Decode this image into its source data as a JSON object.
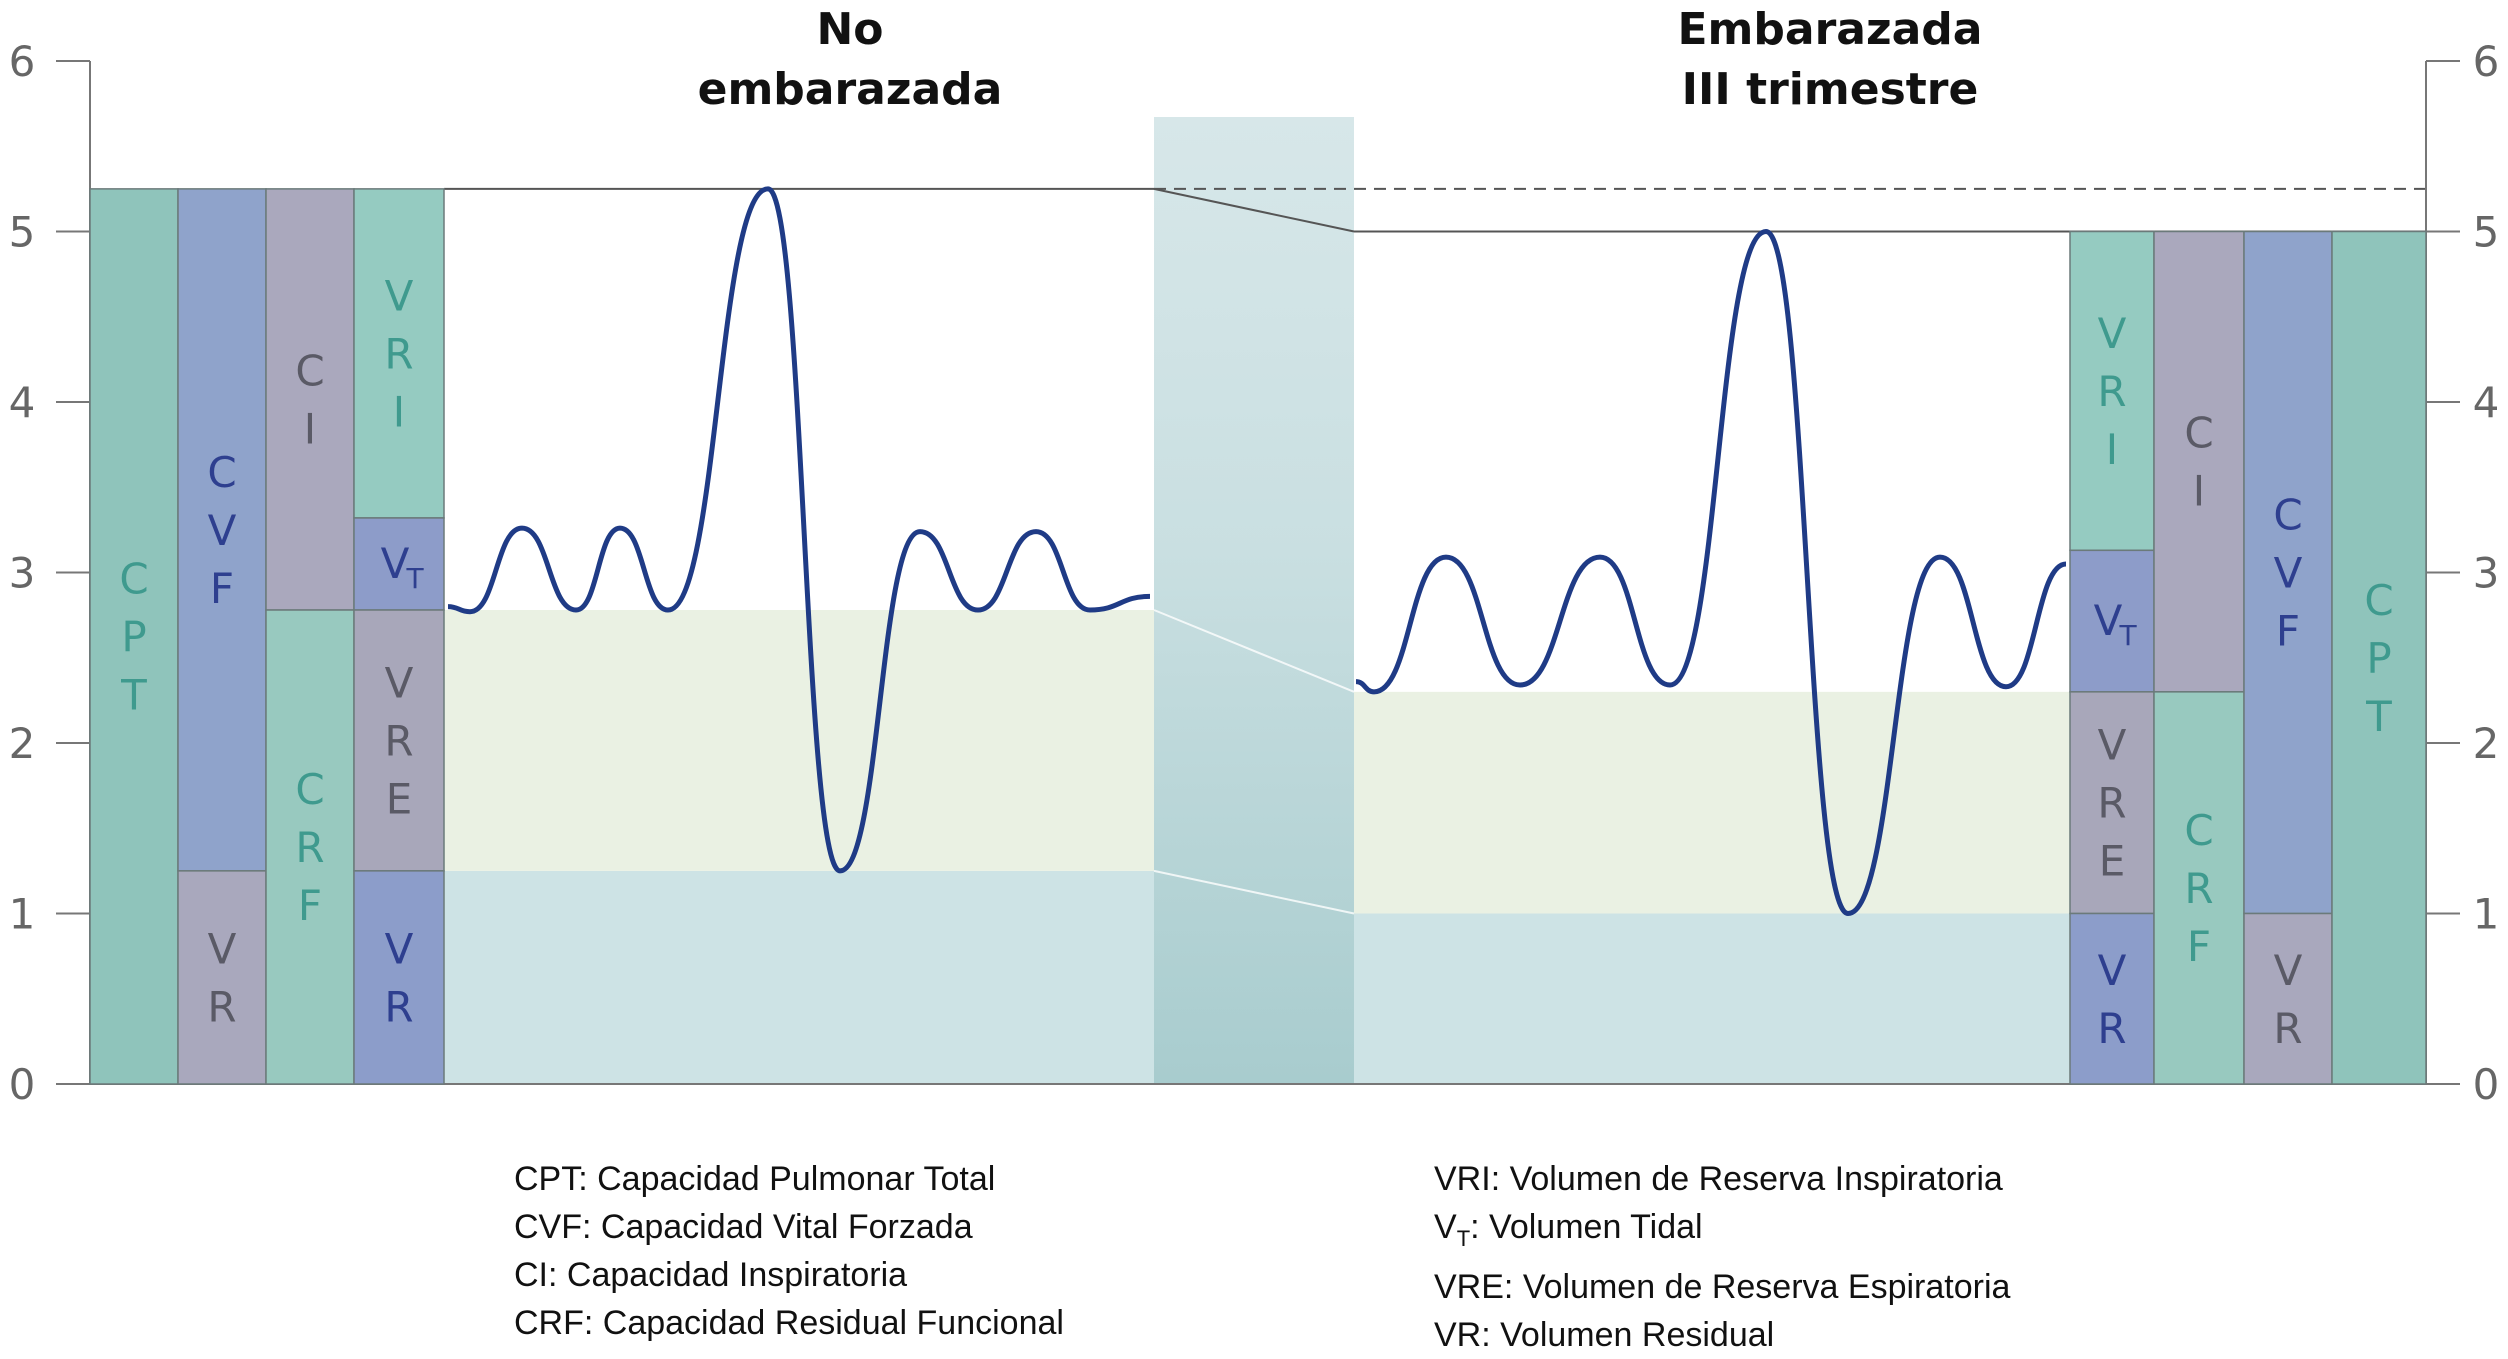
{
  "titles": {
    "left": [
      "No",
      "embarazada"
    ],
    "right": [
      "Embarazada",
      "III trimestre"
    ]
  },
  "axis": {
    "ticks": [
      "0",
      "1",
      "2",
      "3",
      "4",
      "5",
      "6"
    ],
    "ylim": [
      0,
      6
    ]
  },
  "colors": {
    "cpt": "#8fc4bb",
    "cvf": "#8fa3cb",
    "ci": "#aaa8bd",
    "crf": "#98c9bf",
    "vri": "#95cbc1",
    "vt": "#8d9cc9",
    "vre": "#a8a7ba",
    "vr_gray": "#a9a8bd",
    "vr_blue": "#8c9dca",
    "text_teal": "#3f9a8e",
    "text_blue": "#2e3f8f",
    "text_gray": "#5a5a66",
    "wave": "#1f3b86",
    "band_green": "#eaf1e3",
    "band_blue": "#cde3e5"
  },
  "chart_data": {
    "type": "diagram",
    "unit": "L",
    "no_embarazada": {
      "CPT": 5.25,
      "CVF": 4.0,
      "VR": 1.25,
      "CI": 2.47,
      "CRF": 2.78,
      "VRI": 1.93,
      "VT": 0.54,
      "VRE": 1.53
    },
    "embarazada": {
      "CPT": 5.0,
      "CVF": 4.0,
      "VR": 1.0,
      "CI": 2.7,
      "CRF": 2.3,
      "VRI": 1.87,
      "VT": 0.83,
      "VRE": 1.3
    }
  },
  "bars_left": [
    {
      "label": "CPT",
      "text": [
        "C",
        "P",
        "T"
      ]
    },
    {
      "label": "CVF",
      "text": [
        "C",
        "V",
        "F"
      ]
    },
    {
      "label": "VR",
      "text": [
        "V",
        "R"
      ]
    },
    {
      "label": "CI",
      "text": [
        "C",
        "I"
      ]
    },
    {
      "label": "CRF",
      "text": [
        "C",
        "R",
        "F"
      ]
    },
    {
      "label": "VRI",
      "text": [
        "V",
        "R",
        "I"
      ]
    },
    {
      "label": "VT",
      "text": [
        "V",
        "T"
      ]
    },
    {
      "label": "VRE",
      "text": [
        "V",
        "R",
        "E"
      ]
    },
    {
      "label": "VR",
      "text": [
        "V",
        "R"
      ]
    }
  ],
  "bars_right": [
    {
      "label": "VRI",
      "text": [
        "V",
        "R",
        "I"
      ]
    },
    {
      "label": "VT",
      "text": [
        "V",
        "T"
      ]
    },
    {
      "label": "VRE",
      "text": [
        "V",
        "R",
        "E"
      ]
    },
    {
      "label": "VR",
      "text": [
        "V",
        "R"
      ]
    },
    {
      "label": "CI",
      "text": [
        "C",
        "I"
      ]
    },
    {
      "label": "CRF",
      "text": [
        "C",
        "R",
        "F"
      ]
    },
    {
      "label": "CVF",
      "text": [
        "C",
        "V",
        "F"
      ]
    },
    {
      "label": "VR",
      "text": [
        "V",
        "R"
      ]
    },
    {
      "label": "CPT",
      "text": [
        "C",
        "P",
        "T"
      ]
    }
  ],
  "legend_left": [
    "CPT: Capacidad Pulmonar Total",
    "CVF: Capacidad Vital Forzada",
    "CI:  Capacidad Inspiratoria",
    "CRF:  Capacidad Residual Funcional"
  ],
  "legend_right": [
    {
      "pre": "VRI",
      "sub": "",
      "post": ": Volumen de Reserva Inspiratoria"
    },
    {
      "pre": "V",
      "sub": "T",
      "post": ": Volumen Tidal"
    },
    {
      "pre": "VRE",
      "sub": "",
      "post": ": Volumen de Reserva Espiratoria"
    },
    {
      "pre": "VR",
      "sub": "",
      "post": ": Volumen Residual"
    }
  ]
}
